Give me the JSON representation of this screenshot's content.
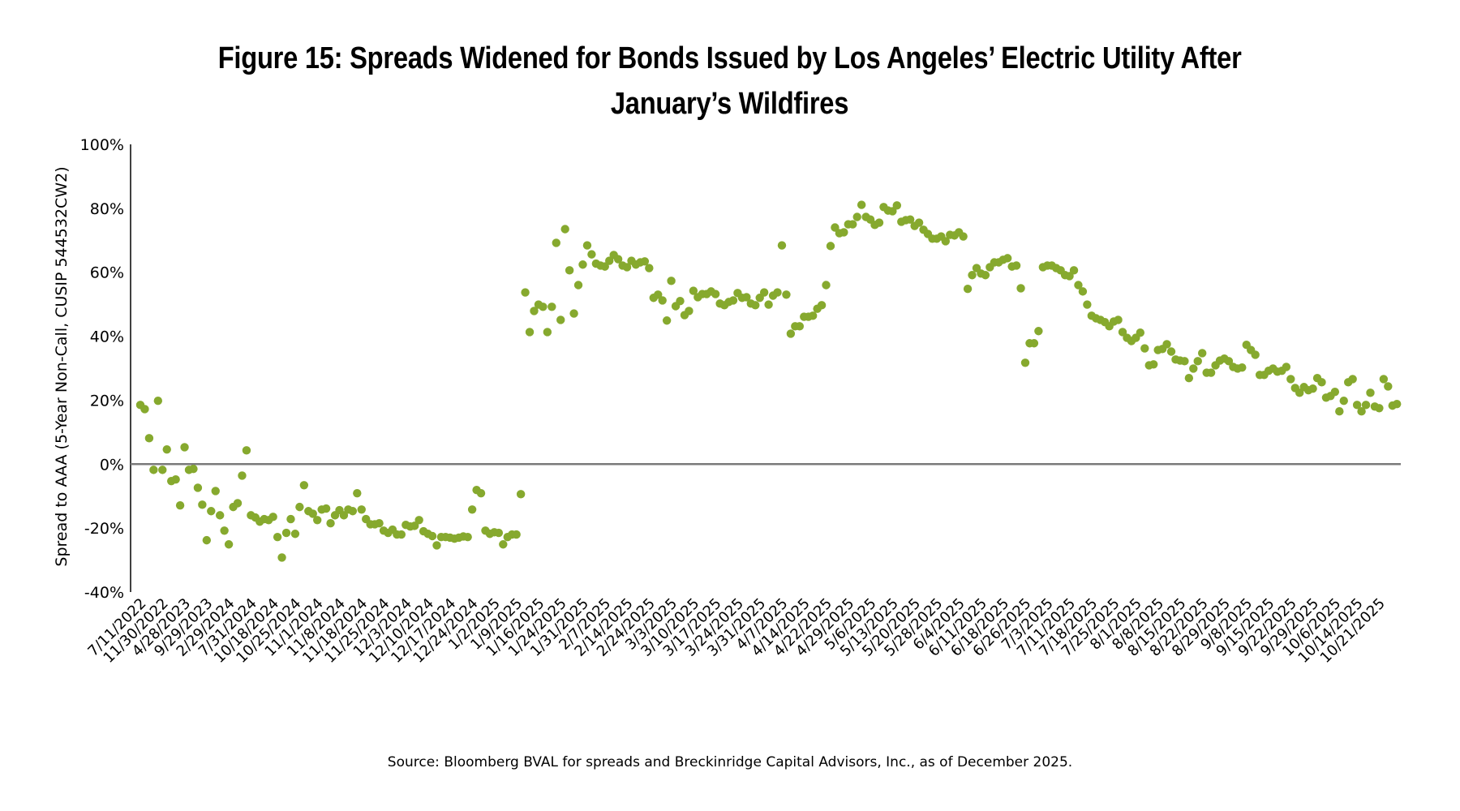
{
  "title_lines": [
    "Figure 15: Spreads Widened for Bonds Issued by Los Angeles’ Electric Utility After",
    "January’s Wildfires"
  ],
  "source": "Source: Bloomberg BVAL for spreads and Breckinridge Capital Advisors, Inc., as of December 2025.",
  "colors": {
    "dots": "#86a92e",
    "zero_line": "#7a7a7a",
    "axis": "#000000"
  },
  "chart_data": {
    "type": "scatter",
    "title": "Figure 15: Spreads Widened for Bonds Issued by Los Angeles’ Electric Utility After January’s Wildfires",
    "xlabel": "",
    "ylabel": "Spread to AAA (5-Year Non-Call, CUSIP 544532CW2)",
    "ylim": [
      -40,
      100
    ],
    "y_ticks": [
      -40,
      -20,
      0,
      20,
      40,
      60,
      80,
      100
    ],
    "y_tick_labels": [
      "-40%",
      "-20%",
      "0%",
      "20%",
      "40%",
      "60%",
      "80%",
      "100%"
    ],
    "grid": false,
    "x_tick_every": 5,
    "x_tick_labels": [
      "7/11/2022",
      "11/30/2022",
      "4/28/2023",
      "9/29/2023",
      "2/29/2024",
      "7/31/2024",
      "10/18/2024",
      "10/25/2024",
      "11/1/2024",
      "11/8/2024",
      "11/18/2024",
      "11/25/2024",
      "12/3/2024",
      "12/10/2024",
      "12/17/2024",
      "12/24/2024",
      "1/2/2025",
      "1/9/2025",
      "1/16/2025",
      "1/24/2025",
      "1/31/2025",
      "2/7/2025",
      "2/14/2025",
      "2/24/2025",
      "3/3/2025",
      "3/10/2025",
      "3/17/2025",
      "3/24/2025",
      "3/31/2025",
      "4/7/2025",
      "4/14/2025",
      "4/22/2025",
      "4/29/2025",
      "5/6/2025",
      "5/13/2025",
      "5/20/2025",
      "5/28/2025",
      "6/4/2025",
      "6/11/2025",
      "6/18/2025",
      "6/26/2025",
      "7/3/2025",
      "7/11/2025",
      "7/18/2025",
      "7/25/2025",
      "8/1/2025",
      "8/8/2025",
      "8/15/2025",
      "8/22/2025",
      "8/29/2025",
      "9/8/2025",
      "9/15/2025",
      "9/22/2025",
      "9/29/2025",
      "10/6/2025",
      "10/14/2025",
      "10/21/2025"
    ],
    "series": [
      {
        "name": "Spread to AAA",
        "unit": "%",
        "values": [
          18.5,
          17.2,
          8.1,
          -1.8,
          19.8,
          -1.8,
          4.6,
          -5.3,
          -4.8,
          -12.9,
          5.3,
          -1.8,
          -1.5,
          -7.4,
          -12.7,
          -23.8,
          -14.7,
          -8.4,
          -16.0,
          -20.8,
          -25.1,
          -13.4,
          -12.2,
          -3.6,
          4.3,
          -16.0,
          -16.7,
          -18.0,
          -17.2,
          -17.5,
          -16.5,
          -22.8,
          -29.2,
          -21.5,
          -17.2,
          -21.8,
          -13.4,
          -6.6,
          -14.7,
          -15.5,
          -17.5,
          -14.2,
          -13.9,
          -18.5,
          -16.0,
          -14.4,
          -16.0,
          -14.2,
          -14.7,
          -9.1,
          -14.2,
          -17.2,
          -18.8,
          -18.8,
          -18.5,
          -20.8,
          -21.5,
          -20.5,
          -22.0,
          -22.0,
          -19.0,
          -19.5,
          -19.3,
          -17.5,
          -21.0,
          -21.8,
          -22.5,
          -25.4,
          -22.8,
          -22.8,
          -23.0,
          -23.3,
          -23.0,
          -22.6,
          -22.8,
          -14.2,
          -8.1,
          -9.1,
          -20.8,
          -21.8,
          -21.3,
          -21.5,
          -25.1,
          -22.8,
          -22.0,
          -22.0,
          -9.4,
          53.7,
          41.3,
          47.9,
          49.9,
          49.2,
          41.3,
          49.2,
          69.2,
          45.1,
          73.5,
          60.6,
          47.1,
          56.0,
          62.4,
          68.4,
          65.6,
          62.7,
          62.1,
          61.8,
          63.6,
          65.4,
          64.1,
          62.1,
          61.6,
          63.6,
          62.4,
          63.1,
          63.4,
          61.3,
          52.0,
          53.0,
          51.2,
          44.9,
          57.3,
          49.4,
          51.0,
          46.6,
          47.9,
          54.2,
          52.2,
          53.2,
          53.2,
          54.0,
          53.2,
          50.2,
          49.7,
          50.7,
          51.2,
          53.5,
          52.0,
          52.2,
          50.2,
          49.7,
          52.0,
          53.7,
          49.9,
          52.7,
          53.7,
          68.4,
          53.0,
          40.8,
          43.1,
          43.1,
          46.1,
          46.1,
          46.4,
          48.6,
          49.7,
          56.0,
          68.2,
          74.0,
          72.2,
          72.5,
          75.0,
          75.0,
          77.3,
          81.1,
          77.3,
          76.5,
          74.8,
          75.5,
          80.4,
          79.3,
          79.1,
          80.9,
          75.8,
          76.3,
          76.5,
          74.5,
          75.5,
          73.3,
          72.0,
          70.5,
          70.5,
          71.2,
          69.7,
          71.7,
          71.5,
          72.5,
          71.2,
          54.8,
          59.1,
          61.3,
          59.6,
          59.1,
          61.6,
          63.1,
          63.1,
          63.9,
          64.4,
          61.8,
          62.1,
          55.0,
          31.7,
          37.8,
          37.8,
          41.6,
          61.6,
          62.1,
          62.1,
          61.3,
          60.6,
          59.1,
          58.8,
          60.6,
          56.0,
          54.0,
          49.9,
          46.4,
          45.6,
          45.1,
          44.4,
          43.1,
          44.6,
          45.1,
          41.3,
          39.5,
          38.5,
          39.5,
          41.1,
          36.2,
          30.9,
          31.2,
          35.7,
          36.0,
          37.5,
          35.2,
          32.7,
          32.4,
          32.2,
          26.9,
          29.9,
          32.2,
          34.7,
          28.6,
          28.6,
          30.9,
          32.4,
          33.0,
          32.2,
          30.4,
          29.9,
          30.2,
          37.3,
          35.7,
          34.2,
          27.9,
          27.9,
          29.2,
          29.9,
          28.9,
          29.2,
          30.4,
          26.6,
          23.8,
          22.3,
          24.1,
          23.1,
          23.6,
          26.9,
          25.6,
          20.8,
          21.3,
          22.6,
          16.5,
          19.8,
          25.6,
          26.6,
          18.5,
          16.5,
          18.5,
          22.3,
          18.0,
          17.5,
          26.6,
          24.3,
          18.3,
          18.8
        ]
      }
    ],
    "reference_lines": [
      {
        "y": 0,
        "label": ""
      }
    ]
  }
}
